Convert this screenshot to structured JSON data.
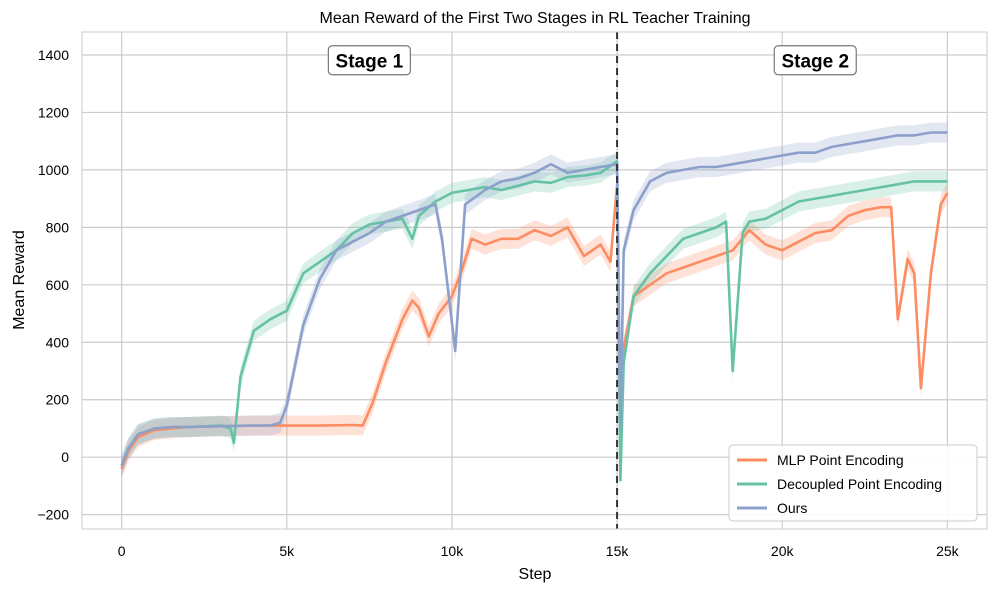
{
  "chart_data": {
    "type": "line",
    "title": "Mean Reward of the First Two Stages in RL Teacher Training",
    "xlabel": "Step",
    "ylabel": "Mean Reward",
    "xlim": [
      -1200,
      26200
    ],
    "ylim": [
      -250,
      1480
    ],
    "grid": true,
    "legend_position": "bottom-right",
    "x_ticks": [
      {
        "value": 0,
        "label": "0"
      },
      {
        "value": 5000,
        "label": "5k"
      },
      {
        "value": 10000,
        "label": "10k"
      },
      {
        "value": 15000,
        "label": "15k"
      },
      {
        "value": 20000,
        "label": "20k"
      },
      {
        "value": 25000,
        "label": "25k"
      }
    ],
    "y_ticks": [
      {
        "value": -200,
        "label": "−200"
      },
      {
        "value": 0,
        "label": "0"
      },
      {
        "value": 200,
        "label": "200"
      },
      {
        "value": 400,
        "label": "400"
      },
      {
        "value": 600,
        "label": "600"
      },
      {
        "value": 800,
        "label": "800"
      },
      {
        "value": 1000,
        "label": "1000"
      },
      {
        "value": 1200,
        "label": "1200"
      },
      {
        "value": 1400,
        "label": "1400"
      }
    ],
    "annotations": [
      {
        "text": "Stage 1",
        "x": 7500,
        "y": 1380
      },
      {
        "text": "Stage 2",
        "x": 21000,
        "y": 1380
      }
    ],
    "vline_x": 15000,
    "series": [
      {
        "name": "MLP Point Encoding",
        "color": "#fc8d62",
        "points": [
          [
            0,
            -40
          ],
          [
            200,
            20
          ],
          [
            500,
            70
          ],
          [
            1000,
            95
          ],
          [
            1500,
            100
          ],
          [
            2000,
            105
          ],
          [
            3000,
            108
          ],
          [
            4000,
            110
          ],
          [
            5000,
            110
          ],
          [
            6000,
            110
          ],
          [
            7000,
            112
          ],
          [
            7300,
            110
          ],
          [
            7600,
            190
          ],
          [
            8000,
            330
          ],
          [
            8500,
            480
          ],
          [
            8800,
            545
          ],
          [
            9000,
            520
          ],
          [
            9300,
            420
          ],
          [
            9600,
            500
          ],
          [
            10000,
            560
          ],
          [
            10300,
            650
          ],
          [
            10600,
            760
          ],
          [
            11000,
            740
          ],
          [
            11500,
            760
          ],
          [
            12000,
            760
          ],
          [
            12500,
            790
          ],
          [
            13000,
            770
          ],
          [
            13500,
            800
          ],
          [
            14000,
            700
          ],
          [
            14500,
            740
          ],
          [
            14800,
            680
          ],
          [
            15000,
            950
          ],
          [
            15100,
            40
          ],
          [
            15200,
            380
          ],
          [
            15500,
            560
          ],
          [
            16000,
            600
          ],
          [
            16500,
            640
          ],
          [
            17000,
            660
          ],
          [
            17500,
            680
          ],
          [
            18000,
            700
          ],
          [
            18500,
            720
          ],
          [
            19000,
            790
          ],
          [
            19500,
            740
          ],
          [
            20000,
            720
          ],
          [
            20500,
            750
          ],
          [
            21000,
            780
          ],
          [
            21500,
            790
          ],
          [
            22000,
            840
          ],
          [
            22500,
            860
          ],
          [
            23000,
            870
          ],
          [
            23300,
            870
          ],
          [
            23500,
            480
          ],
          [
            23800,
            690
          ],
          [
            24000,
            640
          ],
          [
            24200,
            240
          ],
          [
            24500,
            640
          ],
          [
            24800,
            880
          ],
          [
            25000,
            920
          ]
        ]
      },
      {
        "name": "Decoupled Point Encoding",
        "color": "#66c2a5",
        "points": [
          [
            0,
            -30
          ],
          [
            200,
            30
          ],
          [
            500,
            80
          ],
          [
            1000,
            100
          ],
          [
            1500,
            105
          ],
          [
            2000,
            105
          ],
          [
            3000,
            110
          ],
          [
            3300,
            100
          ],
          [
            3400,
            50
          ],
          [
            3600,
            280
          ],
          [
            4000,
            440
          ],
          [
            4500,
            480
          ],
          [
            5000,
            510
          ],
          [
            5500,
            640
          ],
          [
            6000,
            680
          ],
          [
            6500,
            720
          ],
          [
            7000,
            780
          ],
          [
            7500,
            810
          ],
          [
            8000,
            820
          ],
          [
            8500,
            830
          ],
          [
            8800,
            760
          ],
          [
            9000,
            840
          ],
          [
            9500,
            890
          ],
          [
            10000,
            920
          ],
          [
            10500,
            930
          ],
          [
            11000,
            940
          ],
          [
            11500,
            930
          ],
          [
            12000,
            945
          ],
          [
            12500,
            960
          ],
          [
            13000,
            955
          ],
          [
            13500,
            975
          ],
          [
            14000,
            980
          ],
          [
            14500,
            990
          ],
          [
            15000,
            1030
          ],
          [
            15100,
            -80
          ],
          [
            15200,
            330
          ],
          [
            15500,
            560
          ],
          [
            16000,
            640
          ],
          [
            16500,
            700
          ],
          [
            17000,
            760
          ],
          [
            17500,
            780
          ],
          [
            18000,
            800
          ],
          [
            18300,
            820
          ],
          [
            18500,
            300
          ],
          [
            18800,
            780
          ],
          [
            19000,
            820
          ],
          [
            19500,
            830
          ],
          [
            20000,
            860
          ],
          [
            20500,
            890
          ],
          [
            21000,
            900
          ],
          [
            21500,
            910
          ],
          [
            22000,
            920
          ],
          [
            22500,
            930
          ],
          [
            23000,
            940
          ],
          [
            23500,
            950
          ],
          [
            24000,
            960
          ],
          [
            24500,
            960
          ],
          [
            25000,
            960
          ]
        ]
      },
      {
        "name": "Ours",
        "color": "#8da0cb",
        "points": [
          [
            0,
            -30
          ],
          [
            200,
            30
          ],
          [
            500,
            80
          ],
          [
            1000,
            100
          ],
          [
            1500,
            105
          ],
          [
            2000,
            105
          ],
          [
            3000,
            108
          ],
          [
            4000,
            110
          ],
          [
            4500,
            110
          ],
          [
            4800,
            120
          ],
          [
            5000,
            180
          ],
          [
            5500,
            460
          ],
          [
            6000,
            620
          ],
          [
            6500,
            720
          ],
          [
            7000,
            750
          ],
          [
            7500,
            780
          ],
          [
            8000,
            820
          ],
          [
            8500,
            840
          ],
          [
            9000,
            860
          ],
          [
            9500,
            880
          ],
          [
            9700,
            760
          ],
          [
            10000,
            470
          ],
          [
            10100,
            370
          ],
          [
            10400,
            880
          ],
          [
            11000,
            930
          ],
          [
            11500,
            960
          ],
          [
            12000,
            970
          ],
          [
            12500,
            990
          ],
          [
            13000,
            1020
          ],
          [
            13500,
            990
          ],
          [
            14000,
            1000
          ],
          [
            14500,
            1010
          ],
          [
            15000,
            1020
          ],
          [
            15100,
            100
          ],
          [
            15200,
            720
          ],
          [
            15500,
            860
          ],
          [
            16000,
            960
          ],
          [
            16500,
            990
          ],
          [
            17000,
            1000
          ],
          [
            17500,
            1010
          ],
          [
            18000,
            1010
          ],
          [
            18500,
            1020
          ],
          [
            19000,
            1030
          ],
          [
            19500,
            1040
          ],
          [
            20000,
            1050
          ],
          [
            20500,
            1060
          ],
          [
            21000,
            1060
          ],
          [
            21500,
            1080
          ],
          [
            22000,
            1090
          ],
          [
            22500,
            1100
          ],
          [
            23000,
            1110
          ],
          [
            23500,
            1120
          ],
          [
            24000,
            1120
          ],
          [
            24500,
            1130
          ],
          [
            25000,
            1130
          ]
        ]
      }
    ]
  }
}
